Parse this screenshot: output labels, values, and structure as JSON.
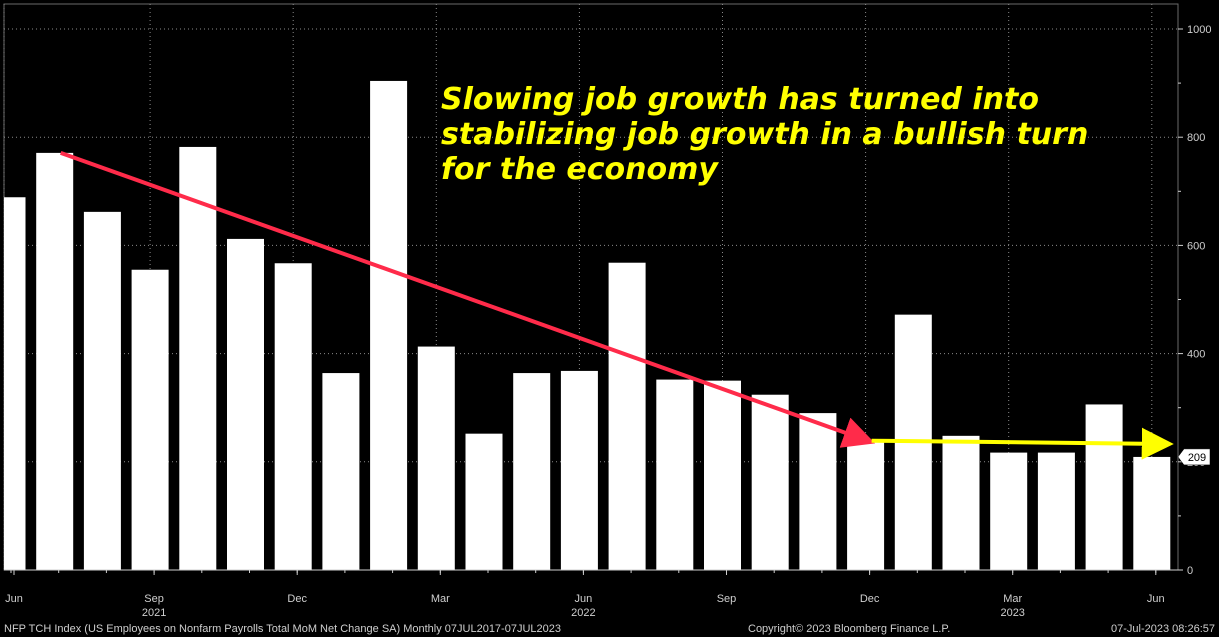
{
  "chart_data": {
    "type": "bar",
    "title": "",
    "series": [
      {
        "values": [
          689,
          771,
          662,
          555,
          782,
          612,
          567,
          364,
          904,
          413,
          252,
          364,
          368,
          568,
          352,
          350,
          324,
          290,
          239,
          472,
          248,
          217,
          217,
          306,
          209
        ]
      }
    ],
    "ylim": [
      0,
      1000
    ],
    "y_ticks": [
      "0",
      "200",
      "400",
      "600",
      "800",
      "1000"
    ],
    "x_month_labels": [
      {
        "index": 0,
        "label": "Jun"
      },
      {
        "index": 3,
        "label": "Sep"
      },
      {
        "index": 6,
        "label": "Dec"
      },
      {
        "index": 9,
        "label": "Mar"
      },
      {
        "index": 12,
        "label": "Jun"
      },
      {
        "index": 15,
        "label": "Sep"
      },
      {
        "index": 18,
        "label": "Dec"
      },
      {
        "index": 21,
        "label": "Mar"
      },
      {
        "index": 24,
        "label": "Jun"
      }
    ],
    "x_year_labels": [
      {
        "index": 3,
        "label": "2021"
      },
      {
        "index": 12,
        "label": "2022"
      },
      {
        "index": 21,
        "label": "2023"
      }
    ],
    "last_value_label": "209",
    "grid": true,
    "annotation": {
      "lines": [
        "Slowing job growth has turned into",
        "stabilizing job growth in a bullish turn",
        "for the economy"
      ],
      "color": "#ffff00"
    },
    "trend_arrows": [
      {
        "name": "declining-trend",
        "color": "#ff2b4a",
        "from": {
          "index": 1,
          "value": 771
        },
        "to": {
          "index": 18,
          "value": 239
        }
      },
      {
        "name": "stabilizing-trend",
        "color": "#ffff00",
        "from": {
          "index": 18,
          "value": 239
        },
        "to": {
          "index": 24,
          "value": 233
        }
      }
    ],
    "colors": {
      "background": "#000000",
      "bars": "#ffffff",
      "grid": "#8a8a8a",
      "axis": "#cfcfcf"
    }
  },
  "footer": {
    "left": "NFP TCH Index (US Employees on Nonfarm Payrolls Total MoM Net Change SA)  Monthly 07JUL2017-07JUL2023",
    "center": "Copyright© 2023 Bloomberg Finance L.P.",
    "right": "07-Jul-2023 08:26:57"
  }
}
